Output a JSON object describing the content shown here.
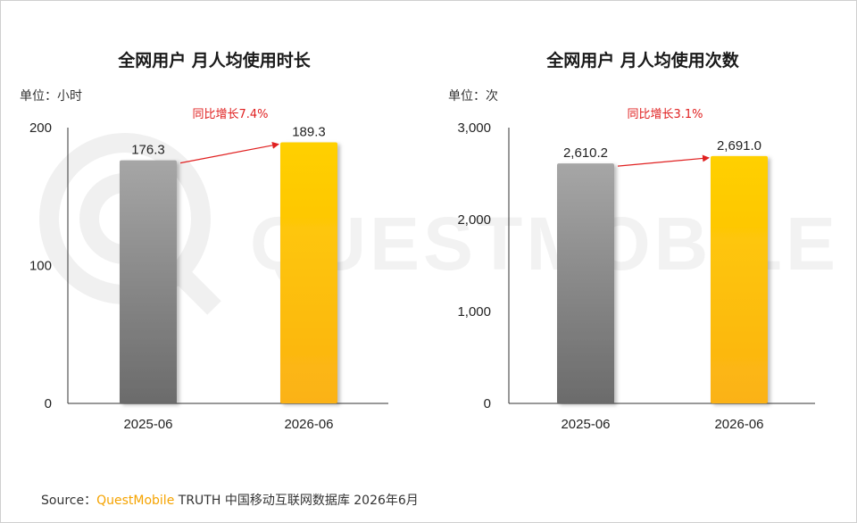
{
  "watermark": {
    "text": "QUESTMOBILE"
  },
  "footer": {
    "source_label": "Source：",
    "brand": "QuestMobile",
    "rest": " TRUTH 中国移动互联网数据库 2026年6月"
  },
  "colors": {
    "bar_prev_top": "#a6a6a6",
    "bar_prev_bottom": "#6b6b6b",
    "bar_curr_top": "#ffd000",
    "bar_curr_bottom": "#fbb215",
    "growth": "#e02020",
    "axis": "#333333"
  },
  "chart_data": [
    {
      "type": "bar",
      "title": "全网用户 月人均使用时长",
      "unit": "单位：小时",
      "categories": [
        "2025-06",
        "2026-06"
      ],
      "values": [
        176.3,
        189.3
      ],
      "value_labels": [
        "176.3",
        "189.3"
      ],
      "yticks": [
        0,
        100,
        200
      ],
      "ytick_labels": [
        "0",
        "100",
        "200"
      ],
      "ylim": [
        0,
        200
      ],
      "growth_label": "同比增长7.4%",
      "grid": false
    },
    {
      "type": "bar",
      "title": "全网用户 月人均使用次数",
      "unit": "单位：次",
      "categories": [
        "2025-06",
        "2026-06"
      ],
      "values": [
        2610.2,
        2691.0
      ],
      "value_labels": [
        "2,610.2",
        "2,691.0"
      ],
      "yticks": [
        0,
        1000,
        2000,
        3000
      ],
      "ytick_labels": [
        "0",
        "1,000",
        "2,000",
        "3,000"
      ],
      "ylim": [
        0,
        3000
      ],
      "growth_label": "同比增长3.1%",
      "grid": false
    }
  ]
}
